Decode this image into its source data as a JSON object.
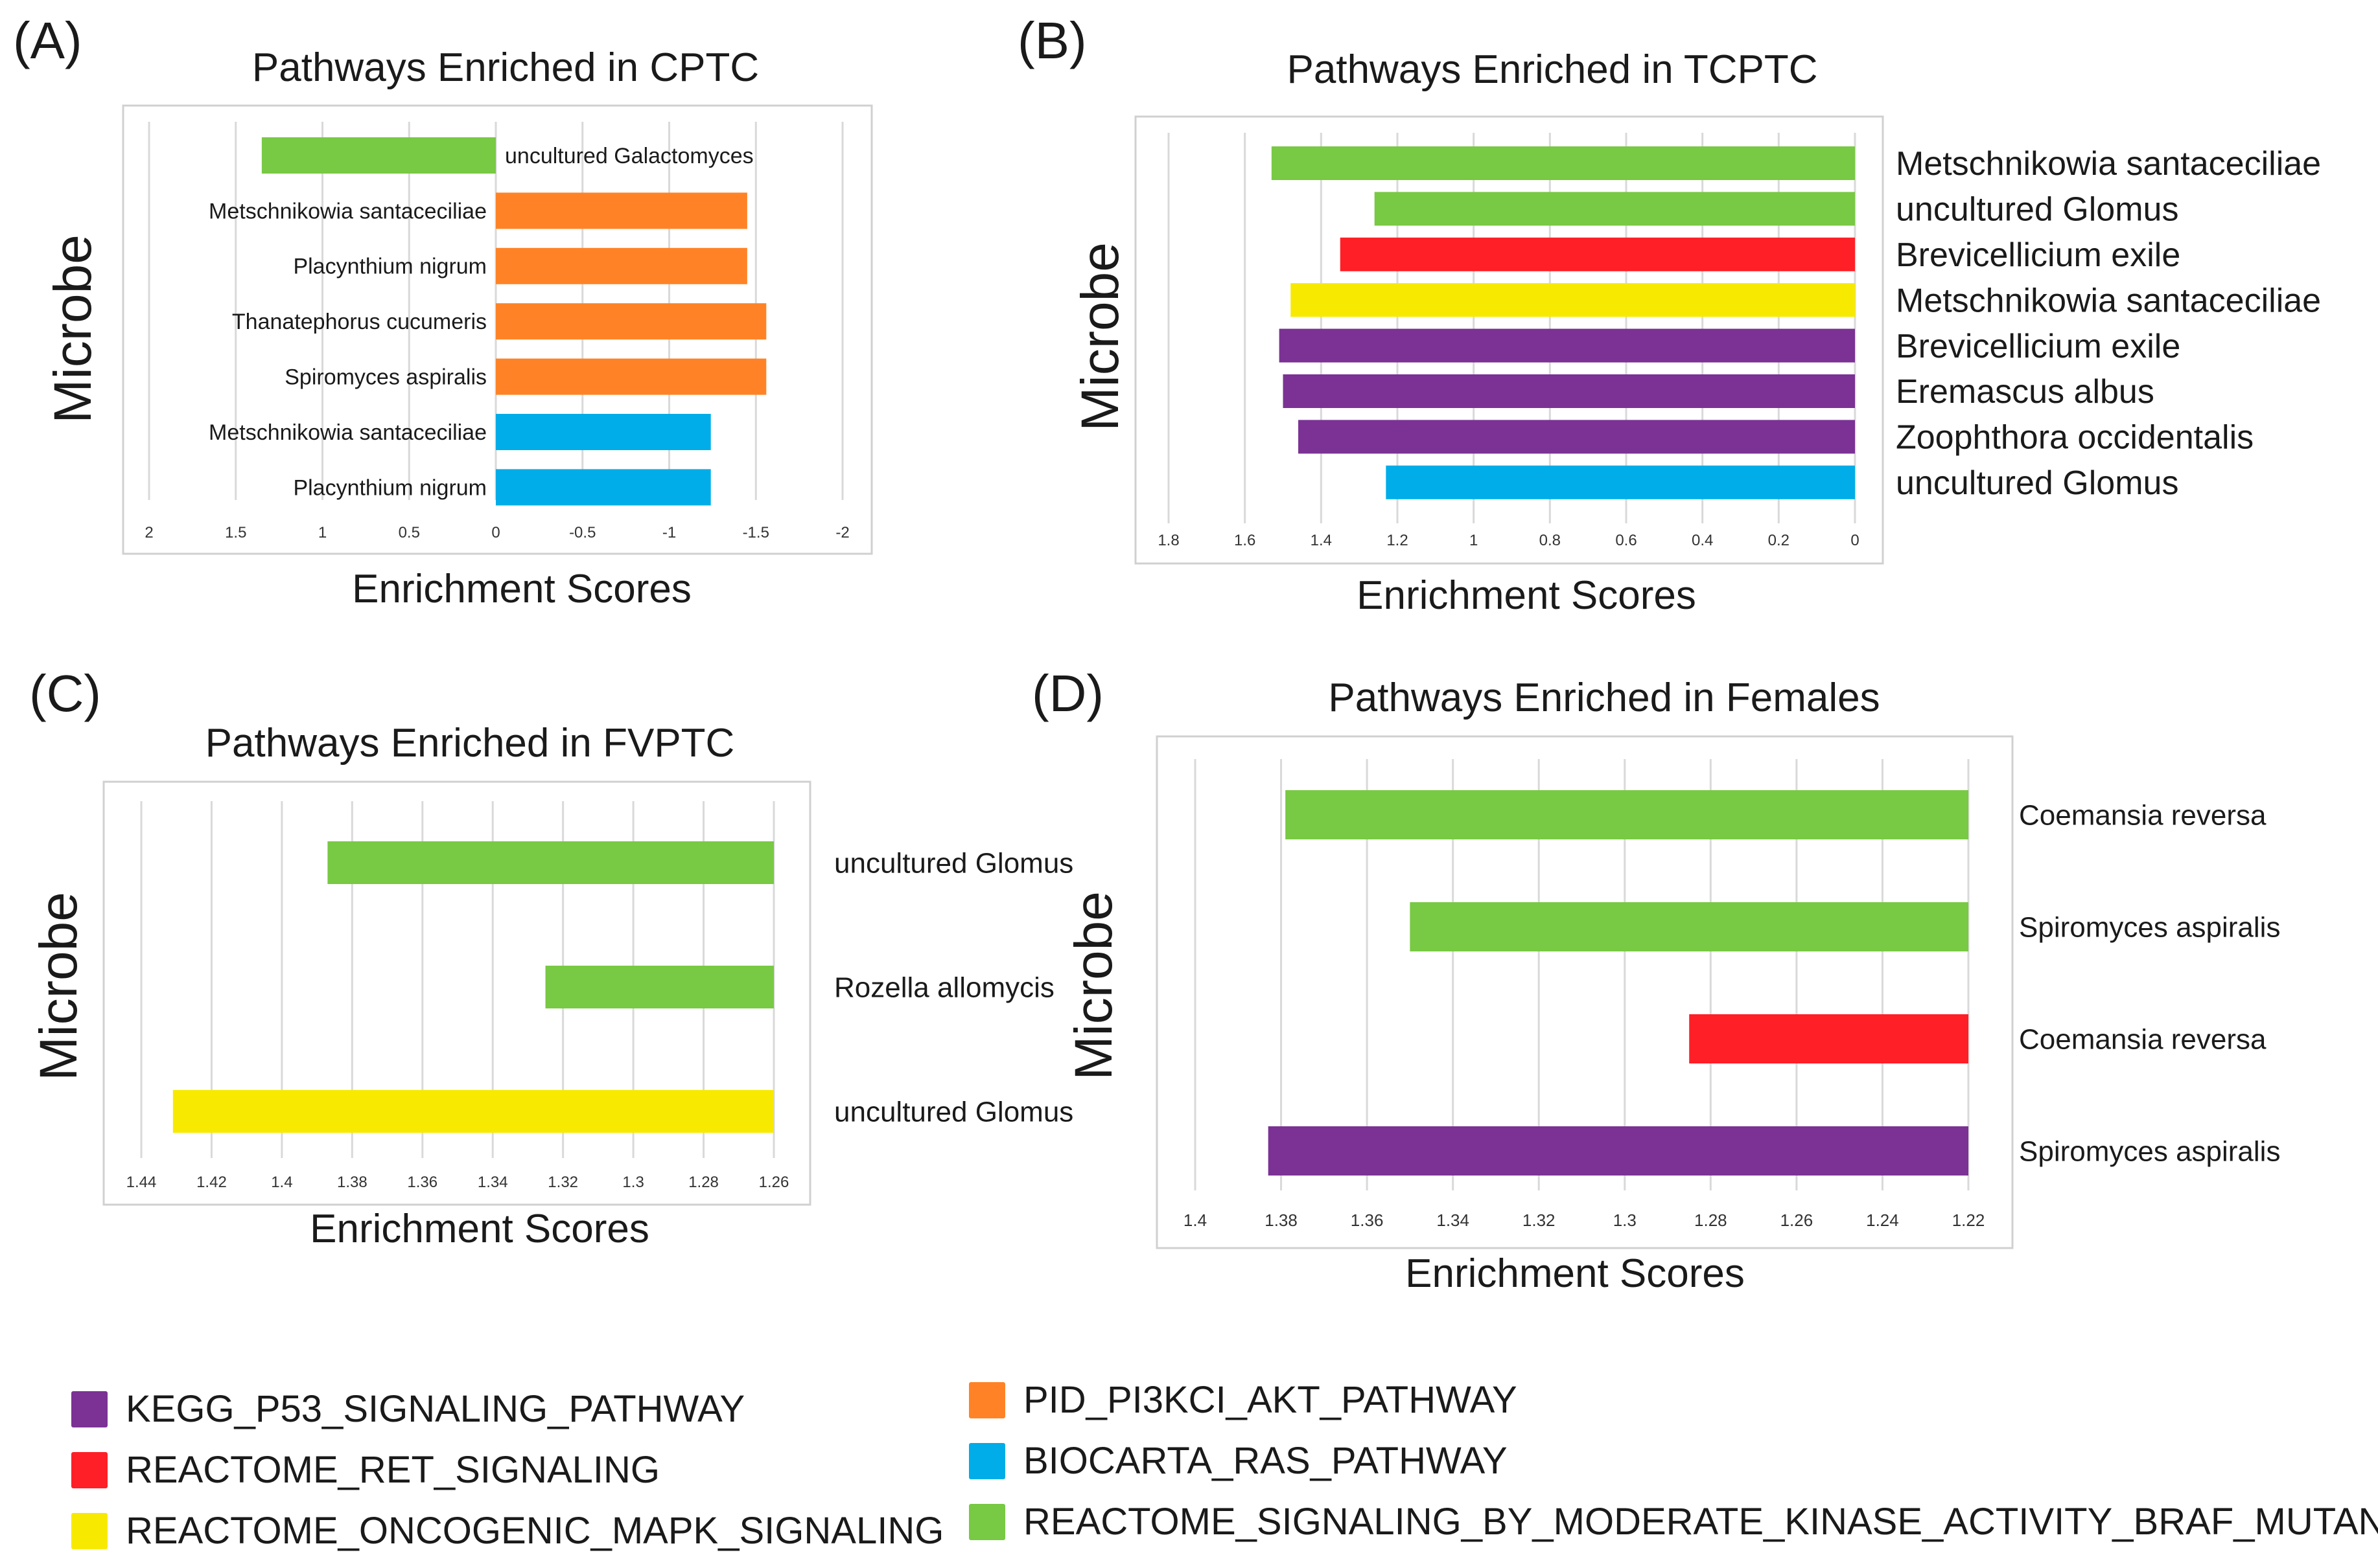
{
  "colors": {
    "KEGG_P53_SIGNALING_PATHWAY": "#7b3294",
    "REACTOME_RET_SIGNALING": "#ff1f26",
    "REACTOME_ONCOGENIC_MAPK_SIGNALING": "#f7ea00",
    "PID_PI3KCI_AKT_PATHWAY": "#ff8326",
    "BIOCARTA_RAS_PATHWAY": "#00ade8",
    "REACTOME_SIGNALING_BY_MODERATE_KINASE_ACTIVITY_BRAF_MUTANTS": "#78c943",
    "grid": "#d9d9d9",
    "frame": "#d0d0d0"
  },
  "legend": {
    "items": [
      {
        "label": "KEGG_P53_SIGNALING_PATHWAY",
        "color": "#7b3294"
      },
      {
        "label": "REACTOME_RET_SIGNALING",
        "color": "#ff1f26"
      },
      {
        "label": "REACTOME_ONCOGENIC_MAPK_SIGNALING",
        "color": "#f7ea00"
      },
      {
        "label": "PID_PI3KCI_AKT_PATHWAY",
        "color": "#ff8326"
      },
      {
        "label": "BIOCARTA_RAS_PATHWAY",
        "color": "#00ade8"
      },
      {
        "label": "REACTOME_SIGNALING_BY_MODERATE_KINASE_ACTIVITY_BRAF_MUTANTS",
        "color": "#78c943"
      }
    ]
  },
  "chart_data": [
    {
      "panel": "(A)",
      "type": "bar",
      "orientation": "horizontal",
      "title": "Pathways Enriched in CPTC",
      "xlabel": "Enrichment Scores",
      "ylabel": "Microbe",
      "xlim": [
        2,
        -2
      ],
      "ticks": [
        2,
        1.5,
        1,
        0.5,
        0,
        -0.5,
        -1,
        -1.5,
        -2
      ],
      "tick_labels": [
        "2",
        "1.5",
        "1",
        "0.5",
        "0",
        "-0.5",
        "-1",
        "-1.5",
        "-2"
      ],
      "bars": [
        {
          "label": "uncultured Galactomyces",
          "value": 1.35,
          "pathway": "REACTOME_SIGNALING_BY_MODERATE_KINASE_ACTIVITY_BRAF_MUTANTS"
        },
        {
          "label": "Metschnikowia santaceciliae",
          "value": -1.45,
          "pathway": "PID_PI3KCI_AKT_PATHWAY"
        },
        {
          "label": "Placynthium nigrum",
          "value": -1.45,
          "pathway": "PID_PI3KCI_AKT_PATHWAY"
        },
        {
          "label": "Thanatephorus cucumeris",
          "value": -1.56,
          "pathway": "PID_PI3KCI_AKT_PATHWAY"
        },
        {
          "label": "Spiromyces aspiralis",
          "value": -1.56,
          "pathway": "PID_PI3KCI_AKT_PATHWAY"
        },
        {
          "label": "Metschnikowia santaceciliae",
          "value": -1.24,
          "pathway": "BIOCARTA_RAS_PATHWAY"
        },
        {
          "label": "Placynthium nigrum",
          "value": -1.24,
          "pathway": "BIOCARTA_RAS_PATHWAY"
        }
      ]
    },
    {
      "panel": "(B)",
      "type": "bar",
      "orientation": "horizontal",
      "title": "Pathways Enriched in TCPTC",
      "xlabel": "Enrichment Scores",
      "ylabel": "Microbe",
      "xlim": [
        1.8,
        0
      ],
      "ticks": [
        1.8,
        1.6,
        1.4,
        1.2,
        1,
        0.8,
        0.6,
        0.4,
        0.2,
        0
      ],
      "tick_labels": [
        "1.8",
        "1.6",
        "1.4",
        "1.2",
        "1",
        "0.8",
        "0.6",
        "0.4",
        "0.2",
        "0"
      ],
      "bars": [
        {
          "label": "Metschnikowia santaceciliae",
          "value": 1.53,
          "pathway": "REACTOME_SIGNALING_BY_MODERATE_KINASE_ACTIVITY_BRAF_MUTANTS"
        },
        {
          "label": "uncultured Glomus",
          "value": 1.26,
          "pathway": "REACTOME_SIGNALING_BY_MODERATE_KINASE_ACTIVITY_BRAF_MUTANTS"
        },
        {
          "label": "Brevicellicium exile",
          "value": 1.35,
          "pathway": "REACTOME_RET_SIGNALING"
        },
        {
          "label": "Metschnikowia santaceciliae",
          "value": 1.48,
          "pathway": "REACTOME_ONCOGENIC_MAPK_SIGNALING"
        },
        {
          "label": "Brevicellicium exile",
          "value": 1.51,
          "pathway": "KEGG_P53_SIGNALING_PATHWAY"
        },
        {
          "label": "Eremascus albus",
          "value": 1.5,
          "pathway": "KEGG_P53_SIGNALING_PATHWAY"
        },
        {
          "label": "Zoophthora occidentalis",
          "value": 1.46,
          "pathway": "KEGG_P53_SIGNALING_PATHWAY"
        },
        {
          "label": "uncultured Glomus",
          "value": 1.23,
          "pathway": "BIOCARTA_RAS_PATHWAY"
        }
      ]
    },
    {
      "panel": "(C)",
      "type": "bar",
      "orientation": "horizontal",
      "title": "Pathways Enriched in FVPTC",
      "xlabel": "Enrichment Scores",
      "ylabel": "Microbe",
      "xlim": [
        1.44,
        1.26
      ],
      "ticks": [
        1.44,
        1.42,
        1.4,
        1.38,
        1.36,
        1.34,
        1.32,
        1.3,
        1.28,
        1.26
      ],
      "tick_labels": [
        "1.44",
        "1.42",
        "1.4",
        "1.38",
        "1.36",
        "1.34",
        "1.32",
        "1.3",
        "1.28",
        "1.26"
      ],
      "bars": [
        {
          "label": "uncultured Glomus",
          "value": 1.387,
          "pathway": "REACTOME_SIGNALING_BY_MODERATE_KINASE_ACTIVITY_BRAF_MUTANTS"
        },
        {
          "label": "Rozella allomycis",
          "value": 1.325,
          "pathway": "REACTOME_SIGNALING_BY_MODERATE_KINASE_ACTIVITY_BRAF_MUTANTS"
        },
        {
          "label": "uncultured Glomus",
          "value": 1.431,
          "pathway": "REACTOME_ONCOGENIC_MAPK_SIGNALING"
        }
      ]
    },
    {
      "panel": "(D)",
      "type": "bar",
      "orientation": "horizontal",
      "title": "Pathways Enriched in Females",
      "xlabel": "Enrichment Scores",
      "ylabel": "Microbe",
      "xlim": [
        1.4,
        1.22
      ],
      "ticks": [
        1.4,
        1.38,
        1.36,
        1.34,
        1.32,
        1.3,
        1.28,
        1.26,
        1.24,
        1.22
      ],
      "tick_labels": [
        "1.4",
        "1.38",
        "1.36",
        "1.34",
        "1.32",
        "1.3",
        "1.28",
        "1.26",
        "1.24",
        "1.22"
      ],
      "bars": [
        {
          "label": "Coemansia reversa",
          "value": 1.379,
          "pathway": "REACTOME_SIGNALING_BY_MODERATE_KINASE_ACTIVITY_BRAF_MUTANTS"
        },
        {
          "label": "Spiromyces aspiralis",
          "value": 1.35,
          "pathway": "REACTOME_SIGNALING_BY_MODERATE_KINASE_ACTIVITY_BRAF_MUTANTS"
        },
        {
          "label": "Coemansia reversa",
          "value": 1.285,
          "pathway": "REACTOME_RET_SIGNALING"
        },
        {
          "label": "Spiromyces aspiralis",
          "value": 1.383,
          "pathway": "KEGG_P53_SIGNALING_PATHWAY"
        }
      ]
    }
  ]
}
